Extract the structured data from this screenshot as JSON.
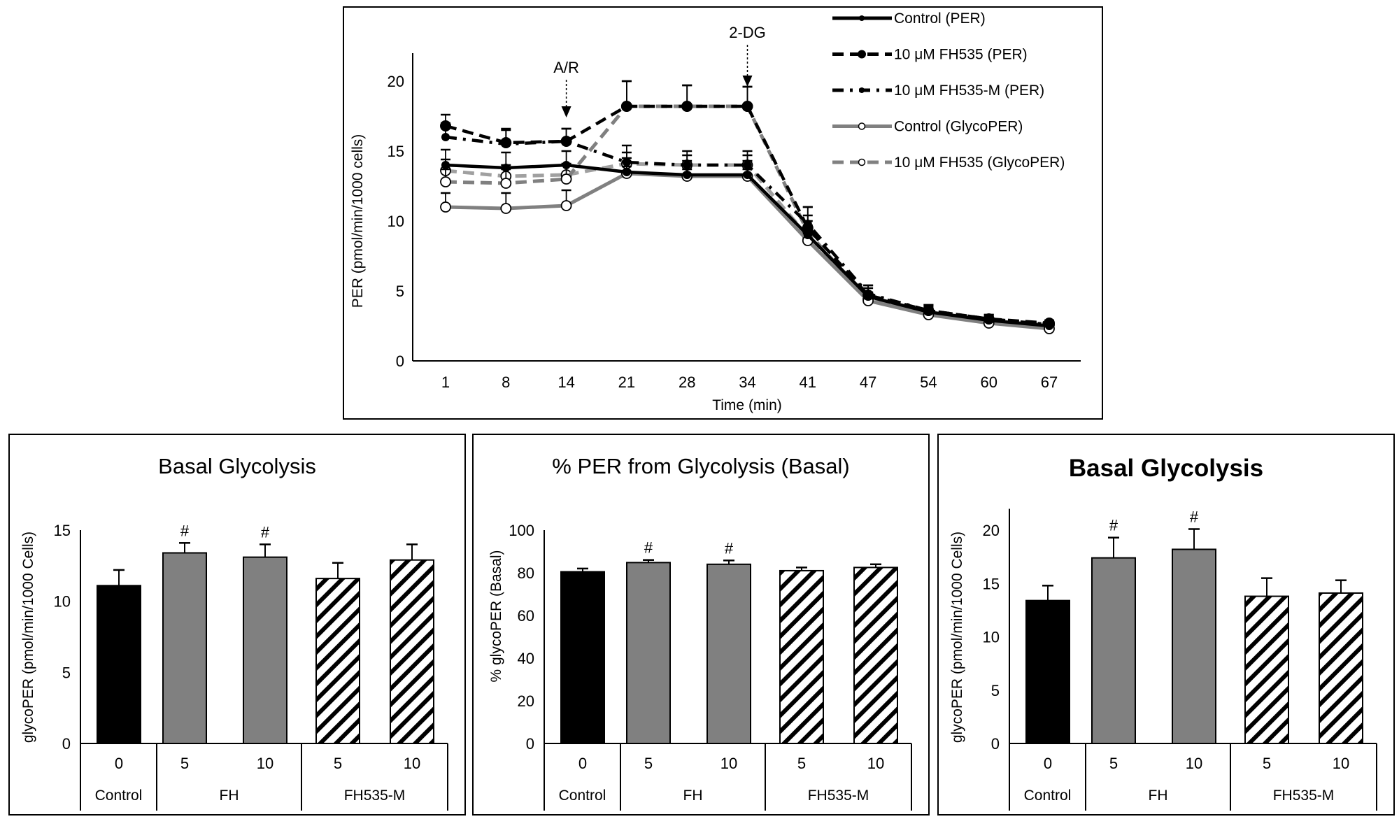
{
  "chart_data": [
    {
      "type": "line",
      "title": "",
      "xlabel": "Time (min)",
      "ylabel": "PER (pmol/min/1000 cells)",
      "x": [
        1,
        8,
        14,
        21,
        28,
        34,
        41,
        47,
        54,
        60,
        67
      ],
      "ylim": [
        0,
        22
      ],
      "yticks": [
        0,
        5,
        10,
        15,
        20
      ],
      "grid": false,
      "legend_position": "top-right",
      "annotations": [
        {
          "text": "A/R",
          "x": 14
        },
        {
          "text": "2-DG",
          "x": 34
        }
      ],
      "series": [
        {
          "name": "Control (PER)",
          "color": "#000000",
          "style": "solid",
          "marker": "filled",
          "values": [
            14.0,
            13.8,
            14.0,
            13.5,
            13.3,
            13.3,
            9.0,
            4.6,
            3.5,
            2.9,
            2.5
          ],
          "errors": [
            1.1,
            1.1,
            1.0,
            1.0,
            1.0,
            1.0,
            1.0,
            0.6,
            0.4,
            0.3,
            0.3
          ]
        },
        {
          "name": "10 μM FH535  (PER)",
          "color": "#000000",
          "style": "dashed",
          "marker": "filled",
          "values": [
            16.8,
            15.6,
            15.7,
            18.2,
            18.2,
            18.2,
            9.5,
            4.7,
            3.6,
            3.0,
            2.7
          ],
          "errors": [
            0.8,
            1.0,
            0.9,
            1.8,
            1.5,
            1.4,
            1.5,
            0.7,
            0.4,
            0.3,
            0.2
          ]
        },
        {
          "name": "10 μM FH535-M  (PER)",
          "color": "#000000",
          "style": "dash-dot",
          "marker": "filled",
          "values": [
            16.0,
            15.5,
            15.7,
            14.2,
            14.0,
            14.0,
            9.8,
            4.8,
            3.6,
            3.0,
            2.6
          ],
          "errors": [
            1.0,
            1.0,
            0.9,
            1.2,
            1.0,
            1.0,
            1.2,
            0.6,
            0.4,
            0.3,
            0.2
          ]
        },
        {
          "name": "Control (GlycoPER)",
          "color": "#808080",
          "style": "solid",
          "marker": "open",
          "values": [
            11.0,
            10.9,
            11.1,
            13.4,
            13.2,
            13.2,
            8.6,
            4.3,
            3.3,
            2.7,
            2.3
          ],
          "errors": [
            1.0,
            1.1,
            1.1,
            0.5,
            0.5,
            0.5,
            0.5,
            0.4,
            0.3,
            0.2,
            0.2
          ]
        },
        {
          "name": "10 μM FH535 (GlycoPER)",
          "color": "#808080",
          "style": "dashed",
          "marker": "open",
          "values": [
            12.8,
            12.7,
            13.0,
            18.2,
            18.2,
            18.2,
            9.2,
            4.4,
            3.4,
            2.8,
            2.6
          ],
          "errors": [
            0.9,
            1.0,
            1.0,
            1.8,
            1.5,
            1.4,
            1.2,
            0.5,
            0.4,
            0.3,
            0.2
          ]
        },
        {
          "color": "#a0a0a0",
          "style": "dashed",
          "marker": "open",
          "values": [
            13.6,
            13.2,
            13.3,
            14.1,
            14.0,
            14.0,
            8.9,
            4.5,
            3.4,
            2.8,
            2.6
          ],
          "errors": [
            0.8,
            0.8,
            0.8,
            0.8,
            0.7,
            0.7,
            0.8,
            0.4,
            0.3,
            0.2,
            0.2
          ]
        }
      ]
    },
    {
      "type": "bar",
      "title": "Basal Glycolysis",
      "title_bold": false,
      "ylabel": "glycoPER  (pmol/min/1000 Cells)",
      "ylim": [
        0,
        15
      ],
      "yticks": [
        0,
        5,
        10,
        15
      ],
      "categories": [
        "0",
        "5",
        "10",
        "5",
        "10"
      ],
      "groups": [
        {
          "label": "Control",
          "size": 1
        },
        {
          "label": "FH",
          "size": 2
        },
        {
          "label": "FH535-M",
          "size": 2
        }
      ],
      "fills": [
        "solid-black",
        "solid-gray",
        "solid-gray",
        "hatched",
        "hatched"
      ],
      "values": [
        11.1,
        13.4,
        13.1,
        11.6,
        12.9
      ],
      "errors": [
        1.1,
        0.7,
        0.9,
        1.1,
        1.1
      ],
      "significance": [
        "",
        "#",
        "#",
        "",
        ""
      ]
    },
    {
      "type": "bar",
      "title": "% PER from Glycolysis  (Basal)",
      "title_bold": false,
      "ylabel": "% glycoPER (Basal)",
      "ylim": [
        0,
        100
      ],
      "yticks": [
        0,
        20,
        40,
        60,
        80,
        100
      ],
      "categories": [
        "0",
        "5",
        "10",
        "5",
        "10"
      ],
      "groups": [
        {
          "label": "Control",
          "size": 1
        },
        {
          "label": "FH",
          "size": 2
        },
        {
          "label": "FH535-M",
          "size": 2
        }
      ],
      "fills": [
        "solid-black",
        "solid-gray",
        "solid-gray",
        "hatched",
        "hatched"
      ],
      "values": [
        80.5,
        84.8,
        84.0,
        81.0,
        82.5
      ],
      "errors": [
        1.5,
        1.2,
        1.8,
        1.5,
        1.5
      ],
      "significance": [
        "",
        "#",
        "#",
        "",
        ""
      ]
    },
    {
      "type": "bar",
      "title": "Basal Glycolysis",
      "title_bold": true,
      "ylabel": "glycoPER  (pmol/min/1000 Cells)",
      "ylim": [
        0,
        22
      ],
      "yticks": [
        0,
        5,
        10,
        15,
        20
      ],
      "categories": [
        "0",
        "5",
        "10",
        "5",
        "10"
      ],
      "groups": [
        {
          "label": "Control",
          "size": 1
        },
        {
          "label": "FH",
          "size": 2
        },
        {
          "label": "FH535-M",
          "size": 2
        }
      ],
      "fills": [
        "solid-black",
        "solid-gray",
        "solid-gray",
        "hatched",
        "hatched"
      ],
      "values": [
        13.4,
        17.4,
        18.2,
        13.8,
        14.1
      ],
      "errors": [
        1.4,
        1.9,
        1.9,
        1.7,
        1.2
      ],
      "significance": [
        "",
        "#",
        "#",
        "",
        ""
      ]
    }
  ]
}
